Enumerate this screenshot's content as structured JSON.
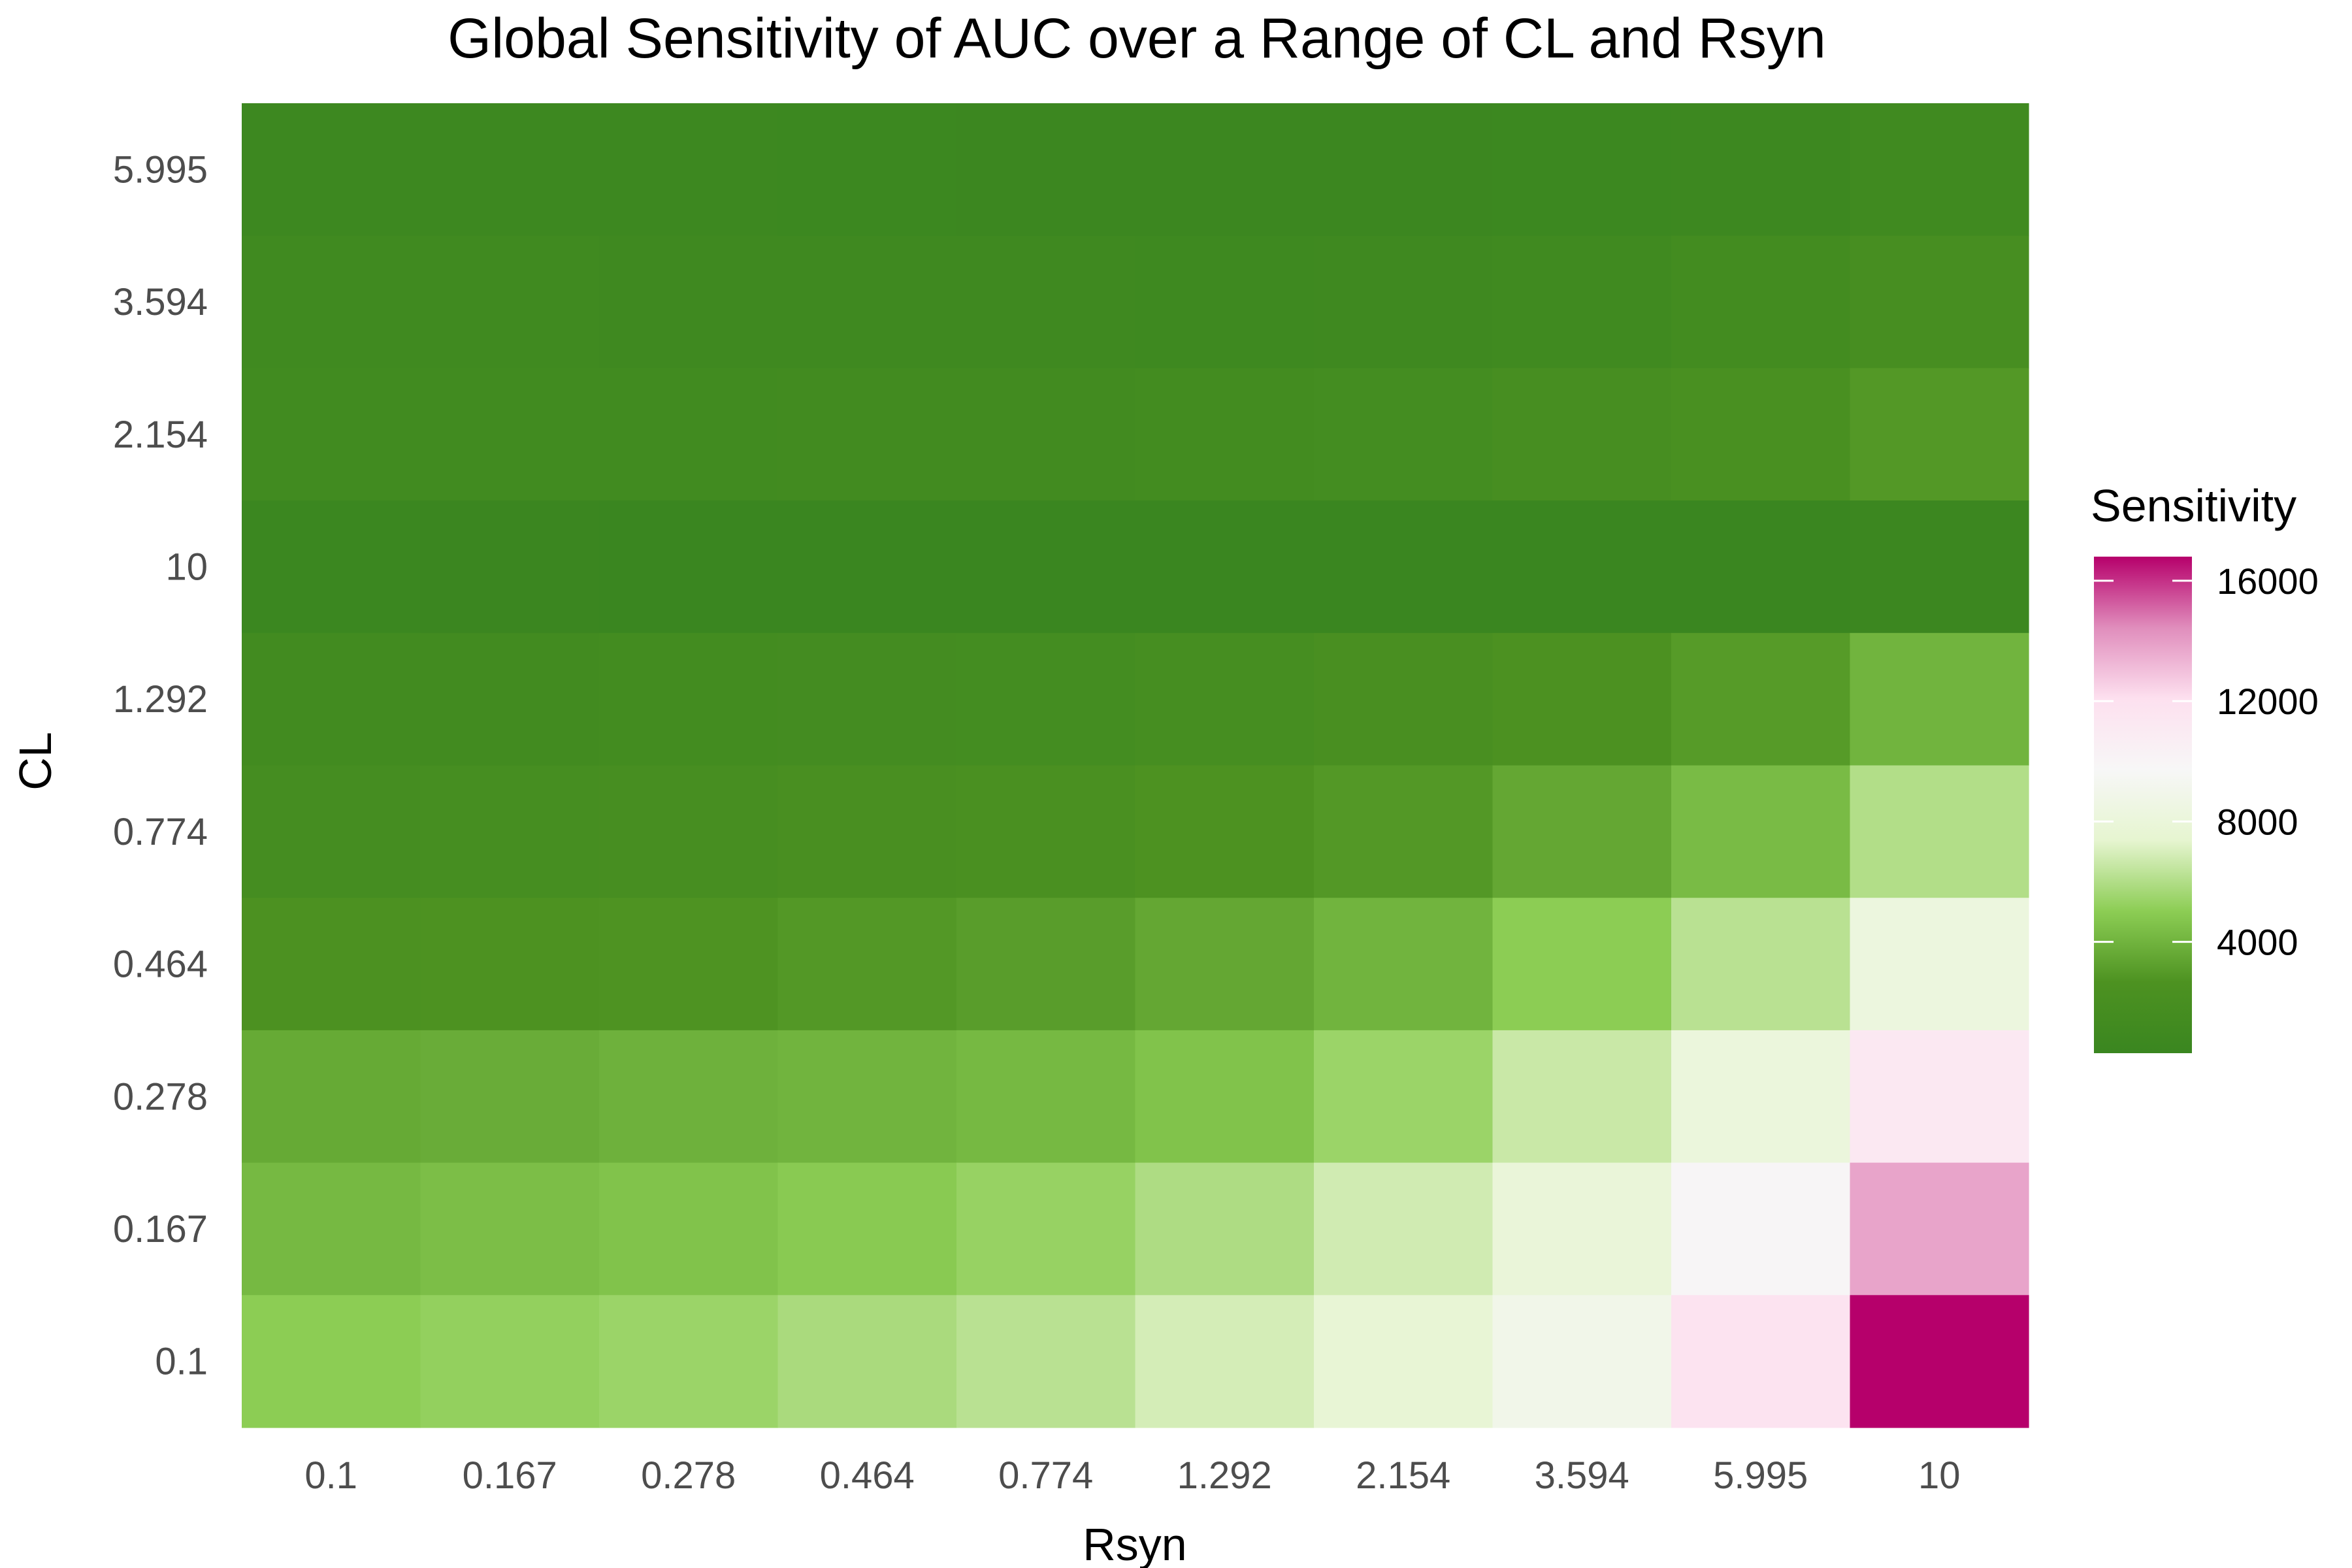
{
  "chart_data": {
    "type": "heatmap",
    "title": "Global Sensitivity of AUC over a Range of CL and Rsyn",
    "xlabel": "Rsyn",
    "ylabel": "CL",
    "x_categories": [
      "0.1",
      "0.167",
      "0.278",
      "0.464",
      "0.774",
      "1.292",
      "2.154",
      "3.594",
      "5.995",
      "10"
    ],
    "y_categories_top_to_bottom": [
      "5.995",
      "3.594",
      "2.154",
      "10",
      "1.292",
      "0.774",
      "0.464",
      "0.278",
      "0.167",
      "0.1"
    ],
    "values_top_to_bottom": [
      [
        700,
        650,
        620,
        600,
        580,
        550,
        520,
        600,
        700,
        1000
      ],
      [
        1000,
        1000,
        950,
        900,
        880,
        850,
        900,
        1100,
        1400,
        1900
      ],
      [
        1200,
        1200,
        1200,
        1300,
        1300,
        1400,
        1600,
        1900,
        2200,
        2900
      ],
      [
        400,
        380,
        360,
        340,
        320,
        300,
        280,
        300,
        350,
        500
      ],
      [
        1300,
        1350,
        1400,
        1500,
        1600,
        1800,
        2100,
        2500,
        3000,
        4000
      ],
      [
        1700,
        1800,
        1900,
        2100,
        2300,
        2600,
        2900,
        3500,
        4300,
        6000
      ],
      [
        2500,
        2600,
        2700,
        2900,
        3100,
        3500,
        4000,
        5000,
        6200,
        8200
      ],
      [
        3600,
        3700,
        3900,
        4000,
        4200,
        4600,
        5400,
        6600,
        8100,
        11300
      ],
      [
        4200,
        4400,
        4600,
        4900,
        5300,
        5900,
        6800,
        7900,
        9900,
        13800
      ],
      [
        5000,
        5200,
        5400,
        5800,
        6200,
        6900,
        7700,
        8900,
        11800,
        16800
      ]
    ],
    "color_scale": {
      "name": "Sensitivity",
      "min": 300,
      "max": 16800,
      "ticks": [
        4000,
        8000,
        12000,
        16000
      ],
      "tick_labels": [
        "4000",
        "8000",
        "12000",
        "16000"
      ],
      "colors": [
        "#3a8620",
        "#4d9221",
        "#8ccd54",
        "#e6f5d0",
        "#f7f7f7",
        "#fde0ef",
        "#e08dbc",
        "#b6006b"
      ]
    },
    "grid": false,
    "legend_position": "right"
  }
}
